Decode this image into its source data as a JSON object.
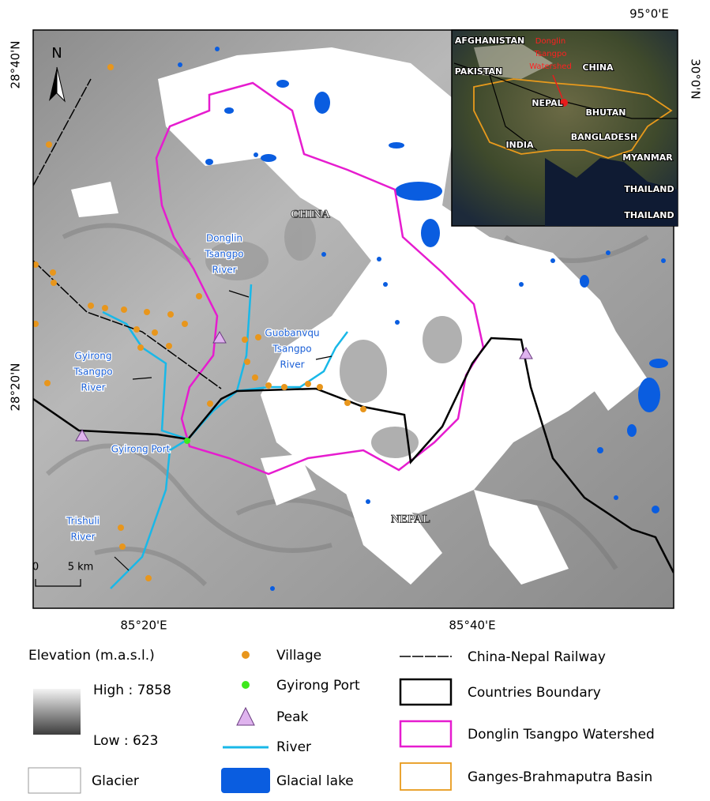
{
  "map": {
    "coords": {
      "lat_top": "28°40'N",
      "lat_mid": "28°20'N",
      "lon_left": "85°20'E",
      "lon_right": "85°40'E",
      "inset_lon": "95°0'E",
      "inset_lat": "30°0'N"
    },
    "north": "N",
    "scale": [
      "0",
      "5 km"
    ],
    "labels": {
      "china": "CHINA",
      "nepal": "NEPAL",
      "donglin_river": [
        "Donglin",
        "Tsangpo",
        "River"
      ],
      "guobanvqu_river": [
        "Guobanvqu",
        "Tsangpo",
        "River"
      ],
      "gyirong_river": [
        "Gyirong",
        "Tsangpo",
        "River"
      ],
      "trishuli_river": [
        "Trishuli",
        "River"
      ],
      "gyirong_port": "Gyirong Port"
    },
    "inset": {
      "watershed": [
        "Donglin",
        "Tsangpo",
        "Watershed"
      ],
      "countries": [
        "AFGHANISTAN",
        "PAKISTAN",
        "CHINA",
        "NEPAL",
        "BHUTAN",
        "INDIA",
        "BANGLADESH",
        "MYANMAR",
        "THAILAND",
        "THAILAND"
      ]
    },
    "legend": {
      "elevation_title": "Elevation (m.a.s.l.)",
      "high": "High : 7858",
      "low": "Low : 623",
      "glacier": "Glacier",
      "village": "Village",
      "port": "Gyirong Port",
      "peak": "Peak",
      "river": "River",
      "lake": "Glacial lake",
      "railway": "China-Nepal Railway",
      "boundary": "Countries Boundary",
      "watershed": "Donglin Tsangpo Watershed",
      "basin": "Ganges-Brahmaputra Basin"
    }
  }
}
